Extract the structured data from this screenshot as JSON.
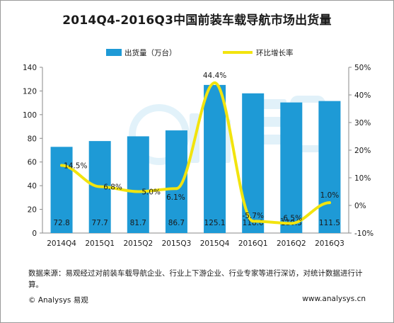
{
  "chart_data": {
    "type": "bar+line",
    "title": "2014Q4-2016Q3中国前装车载导航市场出货量",
    "categories": [
      "2014Q4",
      "2015Q1",
      "2015Q2",
      "2015Q3",
      "2015Q4",
      "2016Q1",
      "2016Q2",
      "2016Q3"
    ],
    "bar_series": {
      "name": "出货量（万台）",
      "values": [
        72.8,
        77.7,
        81.7,
        86.7,
        125.1,
        118.0,
        110.3,
        111.5
      ],
      "labels": [
        "72.8",
        "77.7",
        "81.7",
        "86.7",
        "125.1",
        "118.0",
        "110.3",
        "111.5"
      ],
      "color": "#1e9ad6"
    },
    "line_series": {
      "name": "环比增长率",
      "values": [
        14.5,
        6.8,
        5.0,
        6.1,
        44.4,
        -5.7,
        -6.5,
        1.0
      ],
      "labels": [
        "14.5%",
        "6.8%",
        "5.0%",
        "6.1%",
        "44.4%",
        "-5.7%",
        "-6.5%",
        "1.0%"
      ],
      "color": "#f2e40e"
    },
    "y_left": {
      "min": 0,
      "max": 140,
      "ticks": [
        "0",
        "20",
        "40",
        "60",
        "80",
        "100",
        "120",
        "140"
      ]
    },
    "y_right": {
      "min": -10,
      "max": 50,
      "ticks": [
        "-10%",
        "0%",
        "10%",
        "20%",
        "30%",
        "40%",
        "50%"
      ]
    },
    "legend_position": "top",
    "grid": false
  },
  "source_note": "数据来源：易观经过对前装车载导航企业、行业上下游企业、行业专家等进行深访，对统计数据进行计算。",
  "footer": {
    "brand": "© Analysys 易观",
    "url": "www.analysys.cn"
  }
}
